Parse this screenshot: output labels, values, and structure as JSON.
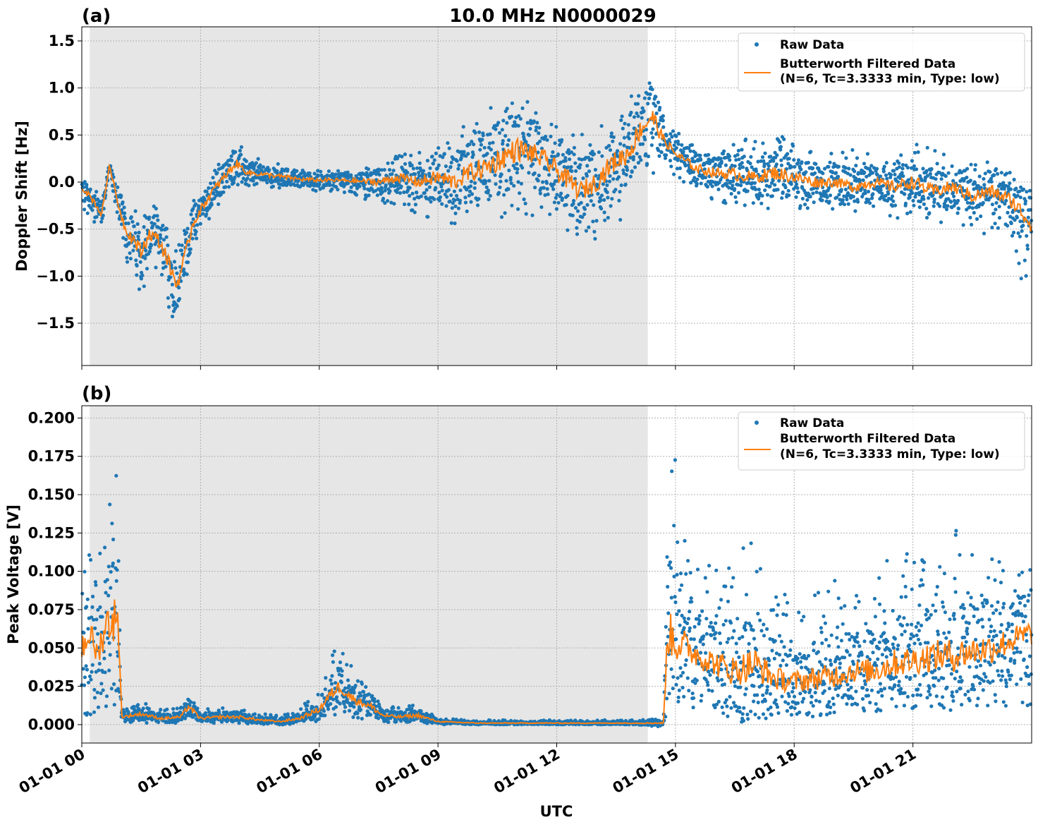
{
  "figure": {
    "title": "10.0 MHz N0000029",
    "xlabel": "UTC",
    "x_tick_labels": [
      "01-01 00",
      "01-01 03",
      "01-01 06",
      "01-01 09",
      "01-01 12",
      "01-01 15",
      "01-01 18",
      "01-01 21"
    ],
    "colors": {
      "raw": "#1f77b4",
      "filtered": "#ff7f0e",
      "night_shade": "#e6e6e6",
      "grid": "#b0b0b0"
    }
  },
  "chart_data": [
    {
      "panel_label": "(a)",
      "type": "scatter",
      "ylabel": "Doppler Shift [Hz]",
      "xlim_hours": [
        0,
        24
      ],
      "ylim": [
        -1.95,
        1.65
      ],
      "y_ticks": [
        1.5,
        1.0,
        0.5,
        0.0,
        -0.5,
        -1.0,
        -1.5
      ],
      "y_tick_labels": [
        "1.5",
        "1.0",
        "0.5",
        "0.0",
        "−0.5",
        "−1.0",
        "−1.5"
      ],
      "grid": true,
      "legend": "top-right",
      "legend_entries": [
        "Raw Data",
        "Butterworth Filtered Data",
        "(N=6, Tc=3.3333 min, Type: low)"
      ],
      "shaded_interval_hours": [
        0.2,
        14.3
      ],
      "series": [
        {
          "name": "Butterworth Filtered Data",
          "x_hours": [
            0,
            0.3,
            0.5,
            0.7,
            0.9,
            1.1,
            1.3,
            1.5,
            1.7,
            1.9,
            2.1,
            2.4,
            2.6,
            2.8,
            3.0,
            3.3,
            3.6,
            3.9,
            4.2,
            4.6,
            5.0,
            5.5,
            6.0,
            6.5,
            7.0,
            7.5,
            8.0,
            8.5,
            9.0,
            9.4,
            9.8,
            10.2,
            10.6,
            11.0,
            11.4,
            11.8,
            12.2,
            12.6,
            13.0,
            13.4,
            13.8,
            14.1,
            14.4,
            14.7,
            15.0,
            15.5,
            16.0,
            16.5,
            17.0,
            17.5,
            18.0,
            18.5,
            19.0,
            19.5,
            20.0,
            20.5,
            21.0,
            21.5,
            22.0,
            22.5,
            23.0,
            23.5,
            24.0
          ],
          "values": [
            -0.05,
            -0.2,
            -0.35,
            0.18,
            -0.2,
            -0.5,
            -0.6,
            -0.75,
            -0.55,
            -0.6,
            -0.75,
            -1.1,
            -0.8,
            -0.45,
            -0.3,
            -0.1,
            0.05,
            0.2,
            0.1,
            0.08,
            0.06,
            0.03,
            0.02,
            0.02,
            0.01,
            0.0,
            0.05,
            0.0,
            0.05,
            0.0,
            0.1,
            0.15,
            0.25,
            0.35,
            0.3,
            0.2,
            0.05,
            -0.1,
            0.0,
            0.2,
            0.3,
            0.55,
            0.7,
            0.45,
            0.3,
            0.15,
            0.1,
            0.08,
            0.05,
            0.1,
            0.05,
            0.0,
            0.0,
            -0.05,
            0.0,
            -0.05,
            0.0,
            -0.1,
            -0.05,
            -0.15,
            -0.1,
            -0.2,
            -0.45
          ]
        },
        {
          "name": "Raw Data",
          "x_hours": [
            0,
            0.3,
            0.5,
            0.7,
            0.9,
            1.1,
            1.3,
            1.5,
            1.7,
            1.9,
            2.1,
            2.4,
            2.6,
            2.8,
            3.0,
            3.3,
            3.6,
            3.9,
            4.2,
            4.6,
            5.0,
            5.5,
            6.0,
            6.5,
            7.0,
            7.5,
            8.0,
            8.5,
            9.0,
            9.4,
            9.8,
            10.2,
            10.6,
            11.0,
            11.4,
            11.8,
            12.2,
            12.6,
            13.0,
            13.4,
            13.8,
            14.1,
            14.4,
            14.7,
            15.0,
            15.5,
            16.0,
            16.5,
            17.0,
            17.5,
            18.0,
            18.5,
            19.0,
            19.5,
            20.0,
            20.5,
            21.0,
            21.5,
            22.0,
            22.5,
            23.0,
            23.5,
            24.0
          ],
          "upper": [
            0.05,
            -0.05,
            -0.2,
            0.2,
            0.05,
            -0.15,
            -0.25,
            -0.35,
            -0.2,
            -0.25,
            -0.35,
            -0.65,
            -0.45,
            -0.15,
            -0.05,
            0.15,
            0.3,
            0.45,
            0.3,
            0.22,
            0.2,
            0.15,
            0.12,
            0.12,
            0.12,
            0.2,
            0.3,
            0.3,
            0.5,
            0.5,
            0.7,
            0.8,
            0.9,
            1.0,
            0.85,
            0.75,
            0.6,
            0.5,
            0.55,
            0.7,
            0.9,
            1.1,
            1.4,
            0.7,
            0.55,
            0.45,
            0.4,
            0.5,
            0.45,
            0.55,
            0.4,
            0.35,
            0.3,
            0.35,
            0.3,
            0.3,
            0.45,
            0.35,
            0.3,
            0.25,
            0.2,
            0.1,
            -0.2
          ],
          "lower": [
            -0.3,
            -0.45,
            -0.55,
            0.1,
            -0.45,
            -0.85,
            -1.0,
            -1.3,
            -0.95,
            -1.1,
            -1.25,
            -1.55,
            -1.2,
            -0.75,
            -0.55,
            -0.35,
            -0.2,
            -0.05,
            -0.05,
            -0.05,
            -0.08,
            -0.1,
            -0.1,
            -0.12,
            -0.15,
            -0.25,
            -0.25,
            -0.35,
            -0.4,
            -0.5,
            -0.45,
            -0.5,
            -0.45,
            -0.4,
            -0.4,
            -0.5,
            -0.55,
            -0.7,
            -0.6,
            -0.5,
            -0.4,
            -0.1,
            0.0,
            0.1,
            0.05,
            -0.1,
            -0.2,
            -0.25,
            -0.25,
            -0.3,
            -0.3,
            -0.35,
            -0.3,
            -0.35,
            -0.3,
            -0.4,
            -0.35,
            -0.45,
            -0.45,
            -0.55,
            -0.6,
            -0.8,
            -1.4
          ]
        }
      ]
    },
    {
      "panel_label": "(b)",
      "type": "scatter",
      "ylabel": "Peak Voltage [V]",
      "xlim_hours": [
        0,
        24
      ],
      "ylim": [
        -0.012,
        0.208
      ],
      "y_ticks": [
        0.2,
        0.175,
        0.15,
        0.125,
        0.1,
        0.075,
        0.05,
        0.025,
        0.0
      ],
      "y_tick_labels": [
        "0.200",
        "0.175",
        "0.150",
        "0.125",
        "0.100",
        "0.075",
        "0.050",
        "0.025",
        "0.000"
      ],
      "grid": true,
      "legend": "top-right",
      "legend_entries": [
        "Raw Data",
        "Butterworth Filtered Data",
        "(N=6, Tc=3.3333 min, Type: low)"
      ],
      "shaded_interval_hours": [
        0.2,
        14.3
      ],
      "series": [
        {
          "name": "Butterworth Filtered Data",
          "x_hours": [
            0,
            0.2,
            0.4,
            0.6,
            0.8,
            0.95,
            1.0,
            1.5,
            2.0,
            2.5,
            2.7,
            3.0,
            3.5,
            4.0,
            4.5,
            5.0,
            5.5,
            6.0,
            6.3,
            6.5,
            6.8,
            7.0,
            7.3,
            7.6,
            8.0,
            8.5,
            9.0,
            10.0,
            11.0,
            12.0,
            13.0,
            14.0,
            14.7,
            14.8,
            15.0,
            15.3,
            15.6,
            16.0,
            16.5,
            17.0,
            17.5,
            18.0,
            18.5,
            19.0,
            19.5,
            20.0,
            20.5,
            21.0,
            21.5,
            22.0,
            22.5,
            23.0,
            23.5,
            24.0
          ],
          "values": [
            0.05,
            0.06,
            0.045,
            0.065,
            0.07,
            0.06,
            0.005,
            0.007,
            0.004,
            0.005,
            0.012,
            0.004,
            0.005,
            0.005,
            0.003,
            0.002,
            0.004,
            0.01,
            0.02,
            0.025,
            0.018,
            0.015,
            0.012,
            0.006,
            0.005,
            0.006,
            0.002,
            0.001,
            0.001,
            0.001,
            0.001,
            0.001,
            0.001,
            0.06,
            0.055,
            0.05,
            0.045,
            0.04,
            0.035,
            0.04,
            0.03,
            0.028,
            0.03,
            0.032,
            0.035,
            0.035,
            0.04,
            0.042,
            0.045,
            0.045,
            0.048,
            0.05,
            0.055,
            0.06
          ]
        },
        {
          "name": "Raw Data",
          "x_hours": [
            0,
            0.2,
            0.4,
            0.6,
            0.8,
            0.95,
            1.0,
            1.5,
            2.0,
            2.5,
            2.7,
            3.0,
            3.5,
            4.0,
            4.5,
            5.0,
            5.5,
            6.0,
            6.3,
            6.5,
            6.8,
            7.0,
            7.3,
            7.6,
            8.0,
            8.5,
            9.0,
            10.0,
            11.0,
            12.0,
            13.0,
            14.0,
            14.7,
            14.8,
            15.0,
            15.3,
            15.6,
            16.0,
            16.5,
            17.0,
            17.5,
            18.0,
            18.5,
            19.0,
            19.5,
            20.0,
            20.5,
            21.0,
            21.5,
            22.0,
            22.5,
            23.0,
            23.5,
            24.0
          ],
          "upper": [
            0.13,
            0.11,
            0.1,
            0.15,
            0.2,
            0.15,
            0.012,
            0.015,
            0.01,
            0.012,
            0.025,
            0.01,
            0.012,
            0.012,
            0.008,
            0.006,
            0.01,
            0.025,
            0.045,
            0.052,
            0.04,
            0.032,
            0.028,
            0.015,
            0.012,
            0.015,
            0.004,
            0.003,
            0.003,
            0.003,
            0.003,
            0.003,
            0.004,
            0.17,
            0.175,
            0.12,
            0.11,
            0.1,
            0.12,
            0.13,
            0.09,
            0.085,
            0.09,
            0.095,
            0.09,
            0.1,
            0.11,
            0.115,
            0.12,
            0.13,
            0.115,
            0.12,
            0.11,
            0.105
          ],
          "lower": [
            0.005,
            0.005,
            0.005,
            0.01,
            0.01,
            0.01,
            0.002,
            0.001,
            0.001,
            0.001,
            0.003,
            0.001,
            0.001,
            0.001,
            0.0,
            0.0,
            0.0,
            0.002,
            0.005,
            0.008,
            0.005,
            0.004,
            0.003,
            0.001,
            0.001,
            0.001,
            0.0,
            0.0,
            0.0,
            0.0,
            0.0,
            0.0,
            -0.002,
            0.01,
            0.01,
            0.01,
            0.008,
            0.008,
            0.006,
            0.006,
            0.005,
            0.004,
            0.005,
            0.006,
            0.006,
            0.006,
            0.007,
            0.008,
            0.008,
            0.008,
            0.009,
            0.01,
            0.01,
            0.01
          ]
        }
      ]
    }
  ]
}
